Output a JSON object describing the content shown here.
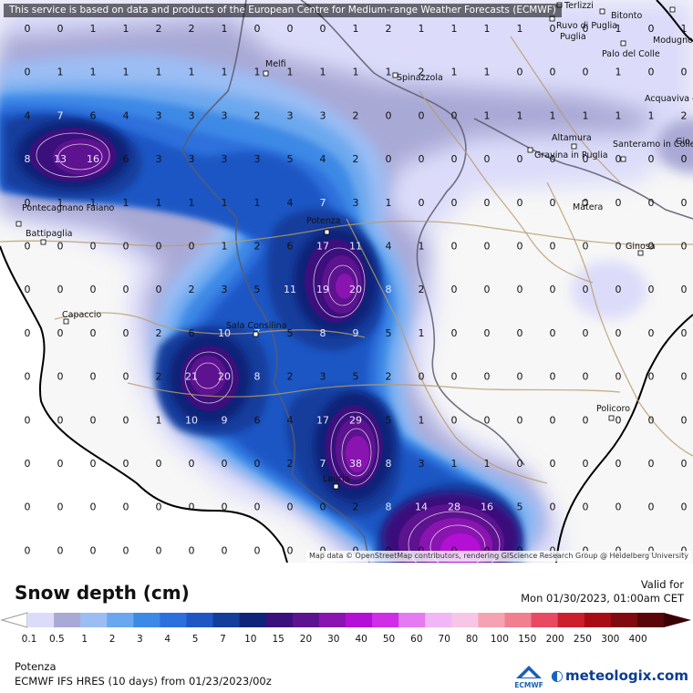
{
  "header": {
    "disclaimer": "This service is based on data and products of the European Centre for Medium-range Weather Forecasts (ECMWF)"
  },
  "map": {
    "attribution": "Map data © OpenStreetMap contributors, rendering GIScience Research Group @ Heidelberg University",
    "cities": [
      {
        "name": "Terlizzi"
      },
      {
        "name": "Bitonto"
      },
      {
        "name": "Ruvo di Puglia"
      },
      {
        "name": "Modugno"
      },
      {
        "name": "Palo del Colle"
      },
      {
        "name": "Melfi"
      },
      {
        "name": "Spinazzola"
      },
      {
        "name": "Acquaviva delle Fonti"
      },
      {
        "name": "Altamura"
      },
      {
        "name": "Gravina in Puglia"
      },
      {
        "name": "Santeramo in Colle"
      },
      {
        "name": "Gio"
      },
      {
        "name": "Pontecagnano Faiano"
      },
      {
        "name": "Battipaglia"
      },
      {
        "name": "Potenza"
      },
      {
        "name": "Matera"
      },
      {
        "name": "Ginosa"
      },
      {
        "name": "Capaccio"
      },
      {
        "name": "Sala Consilina"
      },
      {
        "name": "Policoro"
      },
      {
        "name": "Lauria"
      }
    ],
    "grid_values": [
      [
        "0",
        "0",
        "1",
        "1",
        "2",
        "2",
        "1",
        "0",
        "0",
        "0",
        "1",
        "2",
        "1",
        "1",
        "1",
        "1",
        "0",
        "0",
        "1",
        "0",
        "1"
      ],
      [
        "0",
        "1",
        "1",
        "1",
        "1",
        "1",
        "1",
        "1",
        "1",
        "1",
        "1",
        "1",
        "2",
        "1",
        "1",
        "0",
        "0",
        "0",
        "1",
        "0",
        "0"
      ],
      [
        "4",
        "7",
        "6",
        "4",
        "3",
        "3",
        "3",
        "2",
        "3",
        "3",
        "2",
        "0",
        "0",
        "0",
        "1",
        "1",
        "1",
        "1",
        "1",
        "1",
        "2"
      ],
      [
        "8",
        "13",
        "16",
        "6",
        "3",
        "3",
        "3",
        "3",
        "5",
        "4",
        "2",
        "0",
        "0",
        "0",
        "0",
        "0",
        "0",
        "0",
        "0",
        "0",
        "0"
      ],
      [
        "0",
        "1",
        "1",
        "1",
        "1",
        "1",
        "1",
        "1",
        "4",
        "7",
        "3",
        "1",
        "0",
        "0",
        "0",
        "0",
        "0",
        "0",
        "0",
        "0",
        "0"
      ],
      [
        "0",
        "0",
        "0",
        "0",
        "0",
        "0",
        "1",
        "2",
        "6",
        "17",
        "11",
        "4",
        "1",
        "0",
        "0",
        "0",
        "0",
        "0",
        "0",
        "0",
        "0"
      ],
      [
        "0",
        "0",
        "0",
        "0",
        "0",
        "2",
        "3",
        "5",
        "11",
        "19",
        "20",
        "8",
        "2",
        "0",
        "0",
        "0",
        "0",
        "0",
        "0",
        "0",
        "0"
      ],
      [
        "0",
        "0",
        "0",
        "0",
        "2",
        "6",
        "10",
        "7",
        "5",
        "8",
        "9",
        "5",
        "1",
        "0",
        "0",
        "0",
        "0",
        "0",
        "0",
        "0",
        "0"
      ],
      [
        "0",
        "0",
        "0",
        "0",
        "2",
        "21",
        "20",
        "8",
        "2",
        "3",
        "5",
        "2",
        "0",
        "0",
        "0",
        "0",
        "0",
        "0",
        "0",
        "0",
        "0"
      ],
      [
        "0",
        "0",
        "0",
        "0",
        "1",
        "10",
        "9",
        "6",
        "4",
        "17",
        "29",
        "5",
        "1",
        "0",
        "0",
        "0",
        "0",
        "0",
        "0",
        "0",
        "0"
      ],
      [
        "0",
        "0",
        "0",
        "0",
        "0",
        "0",
        "0",
        "0",
        "2",
        "7",
        "38",
        "8",
        "3",
        "1",
        "1",
        "0",
        "0",
        "0",
        "0",
        "0",
        "0"
      ],
      [
        "0",
        "0",
        "0",
        "0",
        "0",
        "0",
        "0",
        "0",
        "0",
        "0",
        "2",
        "8",
        "14",
        "28",
        "16",
        "5",
        "0",
        "0",
        "0",
        "0",
        "0"
      ],
      [
        "0",
        "0",
        "0",
        "0",
        "0",
        "0",
        "0",
        "0",
        "0",
        "0",
        "0",
        "0",
        "0",
        "0",
        "0",
        "0",
        "0",
        "0",
        "0",
        "0",
        "0"
      ]
    ]
  },
  "legend": {
    "title": "Snow depth (cm)",
    "valid_label": "Valid for",
    "valid_date": "Mon 01/30/2023, 01:00am CET",
    "ticks": [
      "0.1",
      "0.5",
      "1",
      "2",
      "3",
      "4",
      "5",
      "7",
      "10",
      "15",
      "20",
      "30",
      "40",
      "50",
      "60",
      "70",
      "80",
      "100",
      "150",
      "200",
      "250",
      "300",
      "400"
    ],
    "colors": [
      "#dcdcfa",
      "#a9a9d6",
      "#9bbdf4",
      "#6aa7ee",
      "#3d89e6",
      "#2d6fdc",
      "#1f56c4",
      "#143d9c",
      "#0f2478",
      "#3b0f7c",
      "#5d128f",
      "#8a14b0",
      "#b40fd4",
      "#cf2ee6",
      "#e57bf0",
      "#f2b6f6",
      "#f7c6e6",
      "#f5a3b3",
      "#f07f8f",
      "#e84a62",
      "#cc1f2e",
      "#a80d16",
      "#800a0f",
      "#5a0508"
    ]
  },
  "footer": {
    "location": "Potenza",
    "model": "ECMWF IFS HRES (10 days) from 01/23/2023/00z",
    "ecmwf_label": "ECMWF",
    "brand": "meteologix.com"
  }
}
